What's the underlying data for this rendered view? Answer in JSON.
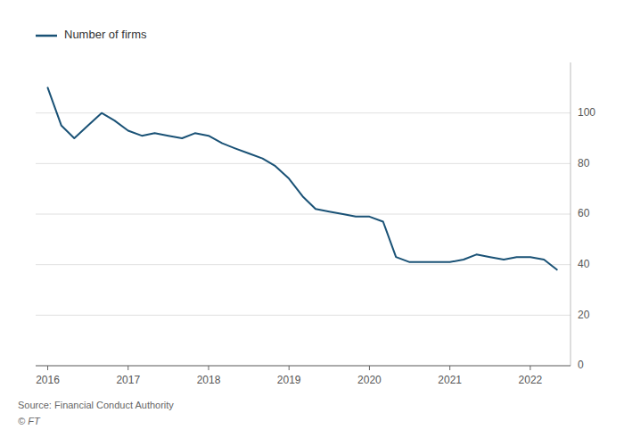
{
  "chart_data": {
    "type": "line",
    "x": [
      2016.0,
      2016.17,
      2016.33,
      2016.5,
      2016.67,
      2016.83,
      2017.0,
      2017.17,
      2017.33,
      2017.5,
      2017.67,
      2017.83,
      2018.0,
      2018.17,
      2018.33,
      2018.5,
      2018.67,
      2018.83,
      2019.0,
      2019.17,
      2019.33,
      2019.5,
      2019.67,
      2019.83,
      2020.0,
      2020.17,
      2020.33,
      2020.5,
      2020.67,
      2020.83,
      2021.0,
      2021.17,
      2021.33,
      2021.5,
      2021.67,
      2021.83,
      2022.0,
      2022.17,
      2022.33
    ],
    "series": [
      {
        "name": "Number of firms",
        "color": "#1a5276",
        "values": [
          110,
          95,
          90,
          95,
          100,
          97,
          93,
          91,
          92,
          91,
          90,
          92,
          91,
          88,
          86,
          84,
          82,
          79,
          74,
          67,
          62,
          61,
          60,
          59,
          59,
          57,
          43,
          41,
          41,
          41,
          41,
          42,
          44,
          43,
          42,
          43,
          43,
          42,
          38
        ]
      }
    ],
    "xlim": [
      2015.85,
      2022.5
    ],
    "xticks": [
      2016,
      2017,
      2018,
      2019,
      2020,
      2021,
      2022
    ],
    "ylim": [
      0,
      120
    ],
    "yticks": [
      0,
      20,
      40,
      60,
      80,
      100
    ],
    "grid": true,
    "legend": "upper left",
    "annotations": [
      "Source: Financial Conduct Authority",
      "© FT"
    ]
  }
}
